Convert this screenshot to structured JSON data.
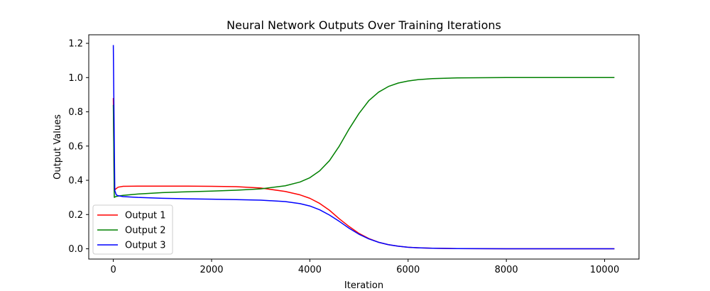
{
  "chart_data": {
    "type": "line",
    "title": "Neural Network Outputs Over Training Iterations",
    "xlabel": "Iteration",
    "ylabel": "Output Values",
    "xlim": [
      -500,
      10700
    ],
    "ylim": [
      -0.06,
      1.25
    ],
    "xticks": [
      0,
      2000,
      4000,
      6000,
      8000,
      10000
    ],
    "yticks": [
      0.0,
      0.2,
      0.4,
      0.6,
      0.8,
      1.0,
      1.2
    ],
    "xtick_labels": [
      "0",
      "2000",
      "4000",
      "6000",
      "8000",
      "10000"
    ],
    "ytick_labels": [
      "0.0",
      "0.2",
      "0.4",
      "0.6",
      "0.8",
      "1.0",
      "1.2"
    ],
    "grid": false,
    "legend_position": "lower-left",
    "series": [
      {
        "name": "Output 1",
        "color": "#ff0000",
        "x": [
          0,
          20,
          50,
          100,
          200,
          500,
          1000,
          1500,
          2000,
          2500,
          3000,
          3500,
          3800,
          4000,
          4200,
          4400,
          4600,
          4800,
          5000,
          5200,
          5400,
          5600,
          5800,
          6000,
          6200,
          6500,
          7000,
          7500,
          8000,
          9000,
          10200
        ],
        "y": [
          0.88,
          0.34,
          0.35,
          0.36,
          0.365,
          0.366,
          0.366,
          0.366,
          0.365,
          0.363,
          0.355,
          0.335,
          0.315,
          0.295,
          0.265,
          0.225,
          0.175,
          0.13,
          0.09,
          0.06,
          0.038,
          0.024,
          0.015,
          0.009,
          0.006,
          0.003,
          0.001,
          0.0005,
          0.0002,
          0.0001,
          0.0
        ]
      },
      {
        "name": "Output 2",
        "color": "#008000",
        "x": [
          0,
          20,
          50,
          100,
          200,
          500,
          1000,
          1500,
          2000,
          2500,
          3000,
          3500,
          3800,
          4000,
          4200,
          4400,
          4600,
          4800,
          5000,
          5200,
          5400,
          5600,
          5800,
          6000,
          6200,
          6500,
          7000,
          7500,
          8000,
          9000,
          10200
        ],
        "y": [
          0.84,
          0.3,
          0.305,
          0.308,
          0.312,
          0.32,
          0.328,
          0.333,
          0.337,
          0.342,
          0.35,
          0.368,
          0.39,
          0.415,
          0.455,
          0.515,
          0.6,
          0.7,
          0.79,
          0.865,
          0.915,
          0.948,
          0.968,
          0.98,
          0.988,
          0.994,
          0.998,
          0.999,
          1.0,
          1.0,
          1.0
        ]
      },
      {
        "name": "Output 3",
        "color": "#0000ff",
        "x": [
          0,
          10,
          30,
          60,
          100,
          200,
          500,
          1000,
          1500,
          2000,
          2500,
          3000,
          3500,
          3800,
          4000,
          4200,
          4400,
          4600,
          4800,
          5000,
          5200,
          5400,
          5600,
          5800,
          6000,
          6200,
          6500,
          7000,
          7500,
          8000,
          9000,
          10200
        ],
        "y": [
          1.19,
          0.9,
          0.34,
          0.315,
          0.31,
          0.305,
          0.3,
          0.295,
          0.292,
          0.29,
          0.287,
          0.284,
          0.276,
          0.264,
          0.25,
          0.228,
          0.197,
          0.16,
          0.12,
          0.085,
          0.058,
          0.038,
          0.024,
          0.015,
          0.009,
          0.006,
          0.003,
          0.001,
          0.0005,
          0.0002,
          0.0001,
          0.0
        ]
      }
    ]
  }
}
